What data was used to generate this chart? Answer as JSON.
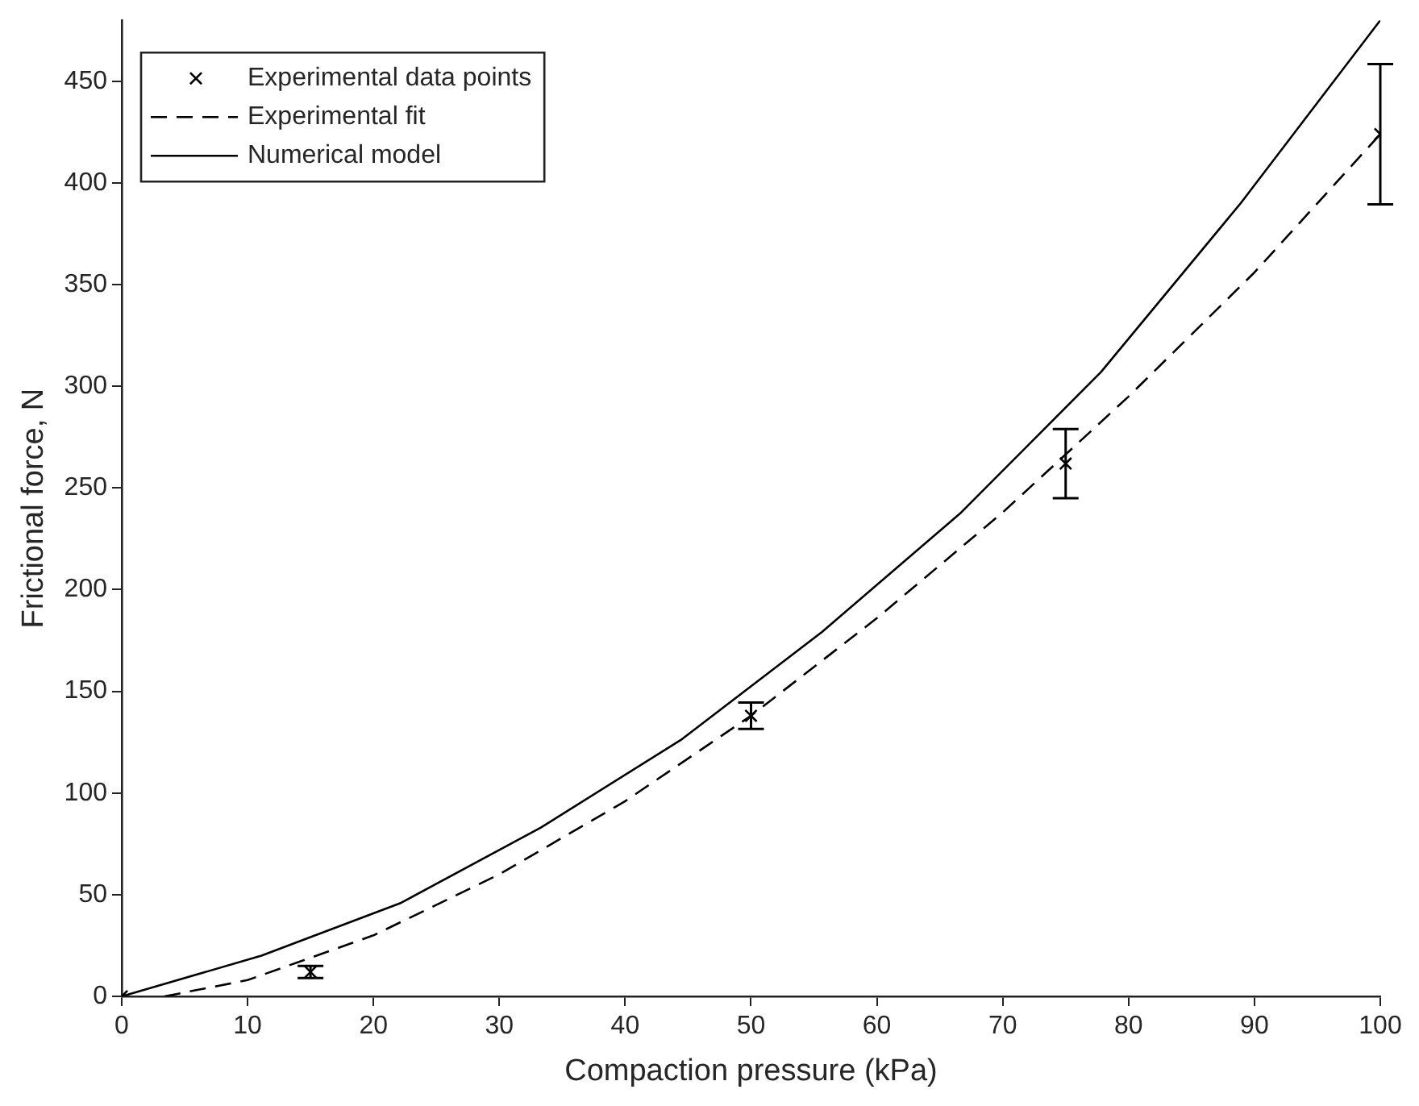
{
  "chart_data": {
    "type": "line",
    "xlabel": "Compaction pressure (kPa)",
    "ylabel": "Frictional force, N",
    "xlim": [
      0,
      100
    ],
    "xticks": [
      0,
      10,
      20,
      30,
      40,
      50,
      60,
      70,
      80,
      90,
      100
    ],
    "ylim": [
      0,
      480
    ],
    "yticks": [
      0,
      50,
      100,
      150,
      200,
      250,
      300,
      350,
      400,
      450
    ],
    "grid": false,
    "legend": "top left",
    "series": [
      {
        "name": "Experimental data points",
        "type": "scatter",
        "marker": "cross",
        "color": "#000000",
        "x": [
          0,
          15,
          50,
          75,
          100
        ],
        "values": [
          0,
          12,
          138,
          262,
          424
        ],
        "errors": [
          null,
          3,
          6.5,
          17,
          34.5
        ]
      },
      {
        "name": "Experimental fit",
        "type": "line",
        "line_style": "dashed",
        "marker": "none",
        "color": "#000000",
        "x": [
          3.4,
          10,
          20,
          30,
          40,
          50,
          60,
          70,
          80,
          90,
          100
        ],
        "values": [
          0,
          8,
          30,
          60,
          96,
          138,
          186,
          238,
          295,
          356,
          424
        ]
      },
      {
        "name": "Numerical model",
        "type": "line",
        "line_style": "solid",
        "marker": "none",
        "color": "#000000",
        "x": [
          0,
          11.1,
          22.2,
          33.3,
          44.4,
          55.6,
          66.7,
          77.8,
          88.9,
          100
        ],
        "values": [
          0,
          20,
          46,
          83,
          126,
          179,
          238,
          307,
          390,
          480
        ]
      }
    ]
  }
}
